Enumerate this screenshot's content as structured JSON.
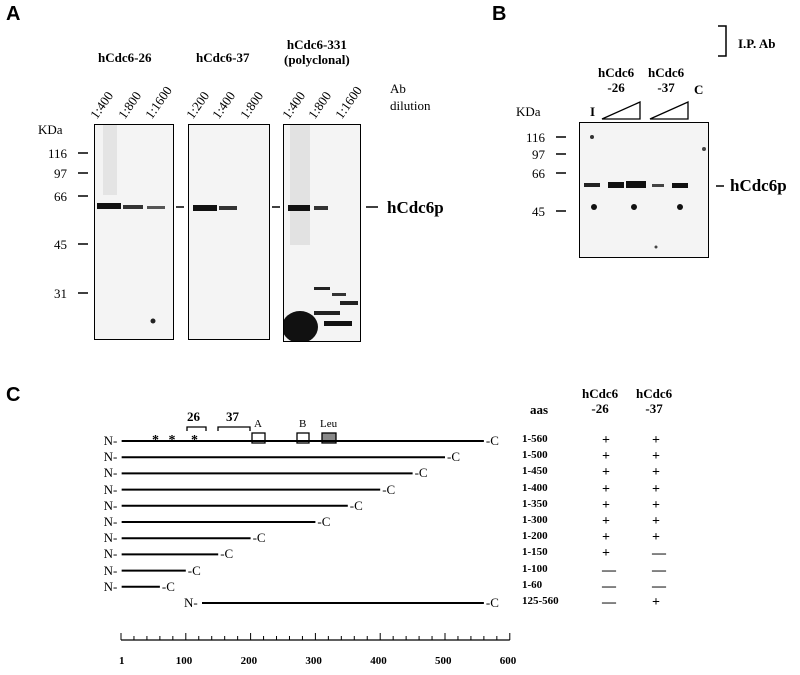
{
  "panels": [
    "A",
    "B",
    "C"
  ],
  "panel_a": {
    "antibodies": [
      "hCdc6-26",
      "hCdc6-37",
      "hCdc6-331\n(polyclonal)"
    ],
    "ab_label": "Ab\ndilution",
    "dilutions": [
      [
        "1:400",
        "1:800",
        "1:1600"
      ],
      [
        "1:200",
        "1:400",
        "1:800"
      ],
      [
        "1:400",
        "1:800",
        "1:1600"
      ]
    ],
    "kda_label": "KDa",
    "markers": [
      "116",
      "97",
      "66",
      "45",
      "31"
    ],
    "band_label": "hCdc6p"
  },
  "panel_b": {
    "antibodies": [
      "hCdc6\n-26",
      "hCdc6\n-37"
    ],
    "control_label": "C",
    "input_label": "I",
    "ip_label": "I.P. Ab",
    "kda_label": "KDa",
    "markers": [
      "116",
      "97",
      "66",
      "45"
    ],
    "band_label": "hCdc6p"
  },
  "panel_c": {
    "epitope_labels": [
      "26",
      "37"
    ],
    "domain_labels": [
      "A",
      "B",
      "Leu"
    ],
    "aas_header": "aas",
    "ab_headers": [
      "hCdc6\n-26",
      "hCdc6\n-37"
    ],
    "n_label": "N-",
    "c_label": "-C",
    "fragments": [
      {
        "range": "1-560",
        "start": 1,
        "end": 560,
        "r26": "+",
        "r37": "+"
      },
      {
        "range": "1-500",
        "start": 1,
        "end": 500,
        "r26": "+",
        "r37": "+"
      },
      {
        "range": "1-450",
        "start": 1,
        "end": 450,
        "r26": "+",
        "r37": "+"
      },
      {
        "range": "1-400",
        "start": 1,
        "end": 400,
        "r26": "+",
        "r37": "+"
      },
      {
        "range": "1-350",
        "start": 1,
        "end": 350,
        "r26": "+",
        "r37": "+"
      },
      {
        "range": "1-300",
        "start": 1,
        "end": 300,
        "r26": "+",
        "r37": "+"
      },
      {
        "range": "1-200",
        "start": 1,
        "end": 200,
        "r26": "+",
        "r37": "+"
      },
      {
        "range": "1-150",
        "start": 1,
        "end": 150,
        "r26": "+",
        "r37": "—"
      },
      {
        "range": "1-100",
        "start": 1,
        "end": 100,
        "r26": "—",
        "r37": "—"
      },
      {
        "range": "1-60",
        "start": 1,
        "end": 60,
        "r26": "—",
        "r37": "—"
      },
      {
        "range": "125-560",
        "start": 125,
        "end": 560,
        "r26": "—",
        "r37": "+"
      }
    ],
    "scale_ticks": [
      "1",
      "100",
      "200",
      "300",
      "400",
      "500",
      "600"
    ]
  }
}
